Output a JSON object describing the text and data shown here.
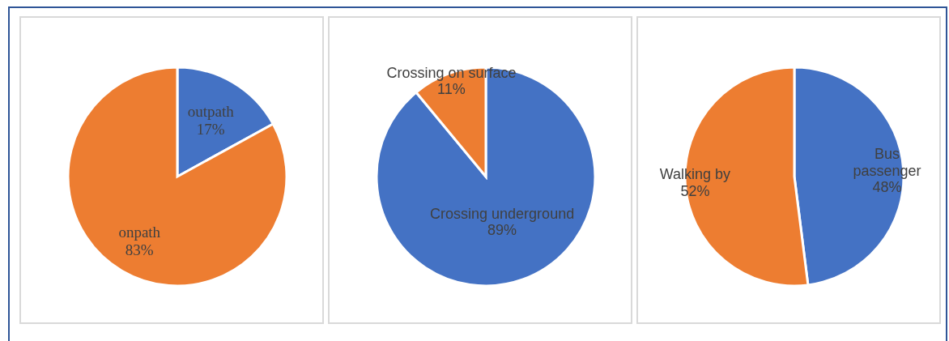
{
  "chart_data": [
    {
      "type": "pie",
      "categories": [
        "outpath",
        "onpath"
      ],
      "values": [
        17,
        83
      ],
      "colors": [
        "#4472c4",
        "#ed7d31"
      ],
      "value_labels": [
        "17%",
        "83%"
      ]
    },
    {
      "type": "pie",
      "categories": [
        "Crossing underground",
        "Crossing on surface"
      ],
      "values": [
        89,
        11
      ],
      "colors": [
        "#4472c4",
        "#ed7d31"
      ],
      "value_labels": [
        "89%",
        "11%"
      ]
    },
    {
      "type": "pie",
      "categories": [
        "Bus passenger",
        "Walking by"
      ],
      "values": [
        48,
        52
      ],
      "colors": [
        "#4472c4",
        "#ed7d31"
      ],
      "value_labels": [
        "48%",
        "52%"
      ]
    }
  ]
}
